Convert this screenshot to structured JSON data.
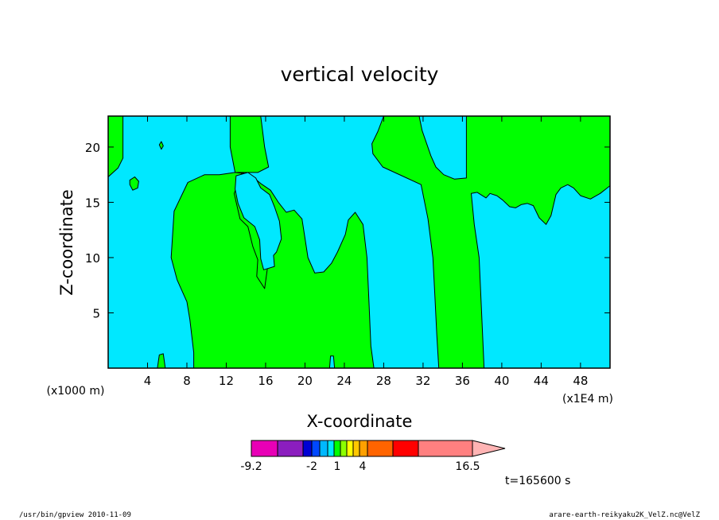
{
  "chart_data": {
    "type": "heatmap",
    "title": "vertical velocity",
    "xlabel": "X-coordinate",
    "ylabel": "Z-coordinate",
    "x_unit_left": "(x1000 m)",
    "x_unit_right": "(x1E4 m)",
    "x_ticks": [
      "4",
      "8",
      "12",
      "16",
      "20",
      "24",
      "28",
      "32",
      "36",
      "40",
      "44",
      "48"
    ],
    "y_ticks": [
      "5",
      "10",
      "15",
      "20"
    ],
    "xlim": [
      0,
      51
    ],
    "ylim": [
      0,
      22.8
    ],
    "colors": {
      "positive": "#00ff00",
      "negative": "#00e8ff",
      "contour": "#000000"
    },
    "regions": [
      {
        "value_sign": "positive",
        "points": [
          [
            0,
            22.8
          ],
          [
            1.5,
            22.8
          ],
          [
            1.5,
            19
          ],
          [
            1.0,
            18.1
          ],
          [
            0,
            17.3
          ]
        ]
      },
      {
        "value_sign": "positive",
        "points": [
          [
            12.4,
            22.8
          ],
          [
            15.5,
            22.8
          ],
          [
            15.9,
            20
          ],
          [
            16.3,
            18.2
          ],
          [
            15.2,
            17.7
          ],
          [
            12.9,
            17.7
          ],
          [
            11.3,
            17.5
          ],
          [
            9.8,
            17.5
          ],
          [
            8.1,
            16.8
          ],
          [
            6.7,
            14.2
          ],
          [
            6.4,
            10
          ],
          [
            7.0,
            8
          ],
          [
            8.0,
            6
          ],
          [
            8.3,
            4.4
          ],
          [
            8.7,
            1.4
          ],
          [
            8.7,
            0
          ],
          [
            27.0,
            0
          ],
          [
            26.7,
            2
          ],
          [
            26.5,
            6
          ],
          [
            26.3,
            10
          ],
          [
            25.9,
            13
          ],
          [
            25.1,
            14.1
          ],
          [
            24.4,
            13.4
          ],
          [
            24.1,
            12.1
          ],
          [
            23.3,
            10.5
          ],
          [
            22.7,
            9.5
          ],
          [
            21.9,
            8.7
          ],
          [
            21.0,
            8.6
          ],
          [
            20.3,
            10.0
          ],
          [
            19.7,
            13.5
          ],
          [
            18.9,
            14.3
          ],
          [
            18.1,
            14.1
          ],
          [
            17.3,
            15.0
          ],
          [
            16.5,
            16.1
          ],
          [
            15.5,
            16.7
          ],
          [
            14.7,
            17.3
          ],
          [
            13.6,
            17.7
          ],
          [
            12.8,
            15.8
          ],
          [
            13.4,
            13.5
          ],
          [
            14.2,
            12.8
          ],
          [
            14.7,
            11.0
          ],
          [
            15.2,
            9.8
          ],
          [
            15.1,
            8.3
          ],
          [
            15.9,
            7.2
          ],
          [
            16.3,
            9.8
          ],
          [
            16.6,
            10.7
          ],
          [
            16.9,
            11.6
          ],
          [
            16.5,
            12.3
          ],
          [
            16.1,
            13.3
          ],
          [
            15.3,
            14.2
          ],
          [
            15.1,
            15.8
          ],
          [
            14.7,
            16.9
          ],
          [
            13.8,
            17.6
          ],
          [
            12.9,
            17.7
          ],
          [
            12.4,
            20
          ]
        ]
      },
      {
        "value_sign": "positive",
        "points": [
          [
            28.0,
            22.8
          ],
          [
            31.6,
            22.8
          ],
          [
            31.9,
            21.5
          ],
          [
            32.8,
            19.2
          ],
          [
            33.3,
            18.2
          ],
          [
            34.1,
            17.5
          ],
          [
            35.2,
            17.1
          ],
          [
            36.4,
            17.2
          ],
          [
            36.4,
            22.8
          ],
          [
            51,
            22.8
          ],
          [
            51,
            16.5
          ],
          [
            50.0,
            15.8
          ],
          [
            49.0,
            15.3
          ],
          [
            48.0,
            15.6
          ],
          [
            47.3,
            16.3
          ],
          [
            46.7,
            16.6
          ],
          [
            46.0,
            16.3
          ],
          [
            45.5,
            15.7
          ],
          [
            45.0,
            13.8
          ],
          [
            44.5,
            13.0
          ],
          [
            43.8,
            13.6
          ],
          [
            43.2,
            14.7
          ],
          [
            42.6,
            14.9
          ],
          [
            42.0,
            14.8
          ],
          [
            41.4,
            14.5
          ],
          [
            40.8,
            14.6
          ],
          [
            40.1,
            15.2
          ],
          [
            39.5,
            15.6
          ],
          [
            38.8,
            15.8
          ],
          [
            38.4,
            15.4
          ],
          [
            37.5,
            15.9
          ],
          [
            36.9,
            15.8
          ],
          [
            37.2,
            13.0
          ],
          [
            37.7,
            10.0
          ],
          [
            37.9,
            6.0
          ],
          [
            38.1,
            2.0
          ],
          [
            38.2,
            0
          ],
          [
            33.6,
            0
          ],
          [
            33.4,
            3.0
          ],
          [
            33.2,
            6.5
          ],
          [
            33.0,
            10.0
          ],
          [
            32.5,
            13.5
          ],
          [
            31.8,
            16.6
          ],
          [
            30.1,
            17.3
          ],
          [
            27.9,
            18.2
          ],
          [
            26.9,
            19.4
          ],
          [
            26.8,
            20.3
          ],
          [
            27.4,
            21.4
          ]
        ]
      }
    ],
    "islands": [
      {
        "value_sign": "negative",
        "points": [
          [
            13.0,
            17.4
          ],
          [
            14.2,
            17.7
          ],
          [
            15.0,
            17.2
          ],
          [
            15.5,
            16.3
          ],
          [
            16.4,
            15.7
          ],
          [
            16.9,
            14.6
          ],
          [
            17.4,
            13.3
          ],
          [
            17.6,
            11.7
          ],
          [
            17.1,
            10.5
          ],
          [
            16.8,
            10.2
          ],
          [
            16.9,
            9.2
          ],
          [
            15.8,
            8.9
          ],
          [
            15.5,
            9.9
          ],
          [
            15.4,
            11.6
          ],
          [
            14.9,
            12.8
          ],
          [
            13.8,
            13.6
          ],
          [
            13.2,
            14.9
          ],
          [
            12.9,
            16.2
          ]
        ]
      },
      {
        "value_sign": "positive",
        "points": [
          [
            2.2,
            17.0
          ],
          [
            2.7,
            17.3
          ],
          [
            3.1,
            16.9
          ],
          [
            3.0,
            16.3
          ],
          [
            2.5,
            16.1
          ],
          [
            2.2,
            16.6
          ]
        ]
      },
      {
        "value_sign": "positive",
        "points": [
          [
            5.2,
            20.2
          ],
          [
            5.4,
            20.5
          ],
          [
            5.6,
            20.1
          ],
          [
            5.4,
            19.8
          ]
        ]
      },
      {
        "value_sign": "positive",
        "points": [
          [
            5.0,
            0
          ],
          [
            5.2,
            1.2
          ],
          [
            5.6,
            1.3
          ],
          [
            5.8,
            0
          ]
        ]
      },
      {
        "value_sign": "negative",
        "points": [
          [
            22.5,
            0
          ],
          [
            22.6,
            1.1
          ],
          [
            22.9,
            1.1
          ],
          [
            23.0,
            0
          ]
        ]
      }
    ]
  },
  "colorbar": {
    "segments": [
      "#e800b6",
      "#8b1ebe",
      "#0000d4",
      "#0048ff",
      "#00b8ff",
      "#00e8ff",
      "#00ff00",
      "#8cff00",
      "#ffff00",
      "#ffc800",
      "#ffa000",
      "#ff6400",
      "#ff0000",
      "#ff8080"
    ],
    "arrow_color": "#ffb4b4",
    "labels": [
      "-9.2",
      "-2",
      "1",
      "4",
      "16.5"
    ]
  },
  "time_label": "t=165600 s",
  "footer": {
    "left": "/usr/bin/gpview   2010-11-09",
    "right": "arare-earth-reikyaku2K_VelZ.nc@VelZ"
  }
}
